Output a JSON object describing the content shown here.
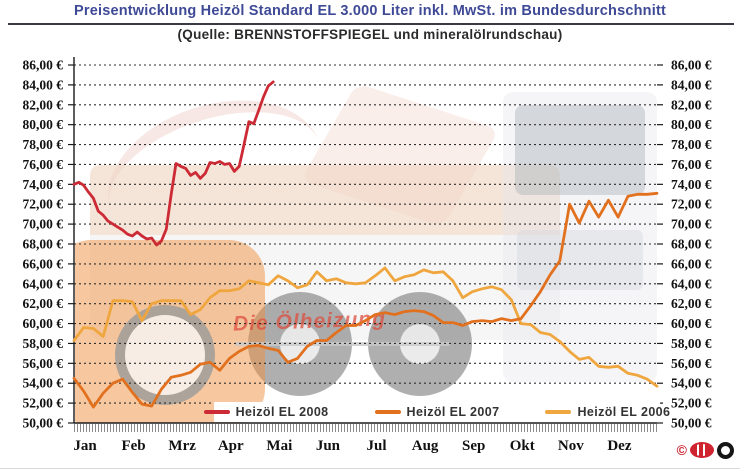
{
  "watermark": {
    "text": "Die Ölheizung"
  },
  "branding": {
    "copyright_symbol": "©"
  },
  "chart_data": {
    "type": "line",
    "title": "Preisentwicklung Heizöl Standard EL 3.000 Liter inkl. MwSt. im Bundesdurchschnitt",
    "subtitle": "(Quelle: BRENNSTOFFSPIEGEL und mineralölrundschau)",
    "xlabel": "",
    "ylabel": "",
    "x_months": [
      "Jan",
      "Feb",
      "Mrz",
      "Apr",
      "Mai",
      "Jun",
      "Jul",
      "Aug",
      "Sep",
      "Okt",
      "Nov",
      "Dez"
    ],
    "ylim": [
      50,
      86
    ],
    "ytick_step": 2,
    "ytick_labels": [
      "86,00 €",
      "84,00 €",
      "82,00 €",
      "80,00 €",
      "78,00 €",
      "76,00 €",
      "74,00 €",
      "72,00 €",
      "70,00 €",
      "68,00 €",
      "66,00 €",
      "64,00 €",
      "62,00 €",
      "60,00 €",
      "58,00 €",
      "56,00 €",
      "54,00 €",
      "52,00 €",
      "50,00 €"
    ],
    "grid": "horizontal-dashed",
    "legend_position": "bottom-center",
    "currency": "EUR",
    "series": [
      {
        "name": "Heizöl EL 2008",
        "color": "#cc2a35",
        "x_start": 0,
        "x_step": 0.1,
        "values": [
          74.0,
          74.2,
          73.9,
          73.2,
          72.6,
          71.3,
          70.9,
          70.3,
          70.0,
          69.7,
          69.4,
          69.0,
          68.8,
          69.2,
          68.8,
          68.5,
          68.6,
          67.9,
          68.3,
          69.5,
          73.0,
          76.1,
          75.8,
          75.6,
          74.9,
          75.2,
          74.6,
          75.1,
          76.2,
          76.1,
          76.3,
          76.0,
          76.1,
          75.3,
          75.8,
          78.0,
          80.3,
          80.1,
          81.4,
          82.8,
          83.9,
          84.3
        ]
      },
      {
        "name": "Heizöl EL 2007",
        "color": "#e2711f",
        "x_start": 0,
        "x_step": 0.2,
        "values": [
          54.5,
          53.2,
          51.6,
          53.0,
          54.0,
          54.4,
          53.1,
          51.9,
          51.7,
          53.4,
          54.6,
          54.8,
          55.1,
          55.9,
          56.1,
          55.3,
          56.5,
          57.2,
          57.7,
          57.8,
          57.5,
          57.3,
          56.1,
          56.5,
          57.7,
          58.3,
          58.3,
          59.1,
          59.8,
          59.8,
          60.3,
          60.9,
          61.1,
          60.9,
          61.2,
          61.3,
          61.2,
          60.8,
          60.1,
          60.1,
          59.8,
          60.2,
          60.3,
          60.2,
          60.5,
          60.3,
          60.5,
          61.8,
          63.2,
          64.9,
          66.3,
          72.0,
          70.1,
          72.3,
          70.7,
          72.4,
          70.7,
          72.8,
          73.0,
          73.0,
          73.1
        ]
      },
      {
        "name": "Heizöl EL 2006",
        "color": "#f0a63f",
        "x_start": 0,
        "x_step": 0.2,
        "values": [
          58.3,
          59.6,
          59.5,
          58.7,
          62.3,
          62.3,
          62.2,
          60.3,
          62.0,
          62.3,
          62.3,
          62.3,
          60.9,
          61.4,
          62.6,
          63.3,
          63.3,
          63.5,
          64.3,
          64.1,
          63.9,
          64.8,
          64.3,
          63.6,
          63.9,
          65.2,
          64.3,
          64.5,
          64.1,
          64.0,
          64.1,
          64.8,
          65.6,
          64.3,
          64.7,
          64.9,
          65.4,
          65.1,
          65.2,
          64.3,
          62.6,
          63.2,
          63.5,
          63.7,
          63.4,
          62.4,
          60.0,
          59.9,
          59.1,
          58.9,
          58.2,
          57.2,
          56.4,
          56.6,
          55.7,
          55.6,
          55.7,
          55.0,
          54.8,
          54.4,
          53.7
        ]
      }
    ]
  }
}
